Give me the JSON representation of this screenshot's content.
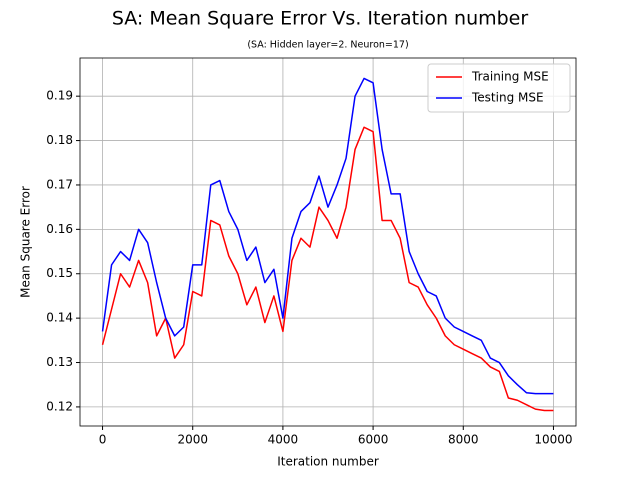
{
  "chart_data": {
    "type": "line",
    "title": "SA: Mean Square Error Vs. Iteration number",
    "subtitle": "(SA: Hidden layer=2. Neuron=17)",
    "x_label": "Iteration number",
    "y_label": "Mean Square Error",
    "x": [
      0,
      200,
      400,
      600,
      800,
      1000,
      1200,
      1400,
      1600,
      1800,
      2000,
      2200,
      2400,
      2600,
      2800,
      3000,
      3200,
      3400,
      3600,
      3800,
      4000,
      4200,
      4400,
      4600,
      4800,
      5000,
      5200,
      5400,
      5600,
      5800,
      6000,
      6200,
      6400,
      6600,
      6800,
      7000,
      7200,
      7400,
      7600,
      7800,
      8000,
      8200,
      8400,
      8600,
      8800,
      9000,
      9200,
      9400,
      9600,
      9800,
      10000
    ],
    "series": [
      {
        "name": "Training MSE",
        "color": "#ff0000",
        "values": [
          0.134,
          0.142,
          0.15,
          0.147,
          0.153,
          0.148,
          0.136,
          0.14,
          0.131,
          0.134,
          0.146,
          0.145,
          0.162,
          0.161,
          0.154,
          0.15,
          0.143,
          0.147,
          0.139,
          0.145,
          0.137,
          0.153,
          0.158,
          0.156,
          0.165,
          0.162,
          0.158,
          0.165,
          0.178,
          0.183,
          0.182,
          0.162,
          0.162,
          0.158,
          0.148,
          0.147,
          0.143,
          0.14,
          0.136,
          0.134,
          0.133,
          0.132,
          0.131,
          0.129,
          0.128,
          0.122,
          0.1215,
          0.1205,
          0.1195,
          0.1192,
          0.1192
        ]
      },
      {
        "name": "Testing MSE",
        "color": "#0000ff",
        "values": [
          0.137,
          0.152,
          0.155,
          0.153,
          0.16,
          0.157,
          0.148,
          0.14,
          0.136,
          0.138,
          0.152,
          0.152,
          0.17,
          0.171,
          0.164,
          0.16,
          0.153,
          0.156,
          0.148,
          0.151,
          0.14,
          0.158,
          0.164,
          0.166,
          0.172,
          0.165,
          0.17,
          0.176,
          0.19,
          0.194,
          0.193,
          0.178,
          0.168,
          0.168,
          0.155,
          0.15,
          0.146,
          0.145,
          0.14,
          0.138,
          0.137,
          0.136,
          0.135,
          0.131,
          0.13,
          0.127,
          0.125,
          0.1232,
          0.123,
          0.123,
          0.123
        ]
      }
    ],
    "xlim": [
      -500,
      10500
    ],
    "ylim": [
      0.1157,
      0.1986
    ],
    "xticks": [
      0,
      2000,
      4000,
      6000,
      8000,
      10000
    ],
    "yticks": [
      0.12,
      0.13,
      0.14,
      0.15,
      0.16,
      0.17,
      0.18,
      0.19
    ],
    "grid": true,
    "legend": "upper-right"
  }
}
